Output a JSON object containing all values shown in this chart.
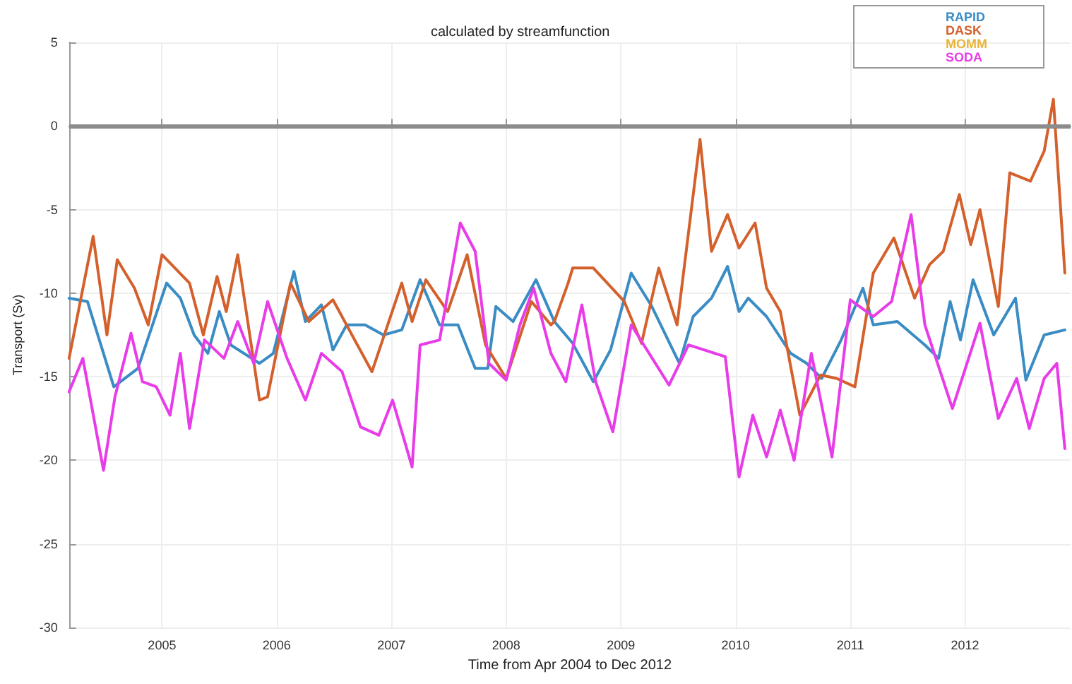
{
  "chart_data": {
    "type": "line",
    "title": "calculated by streamfunction",
    "xlabel": "Time from Apr 2004 to Dec 2012",
    "ylabel": "Transport (Sv)",
    "xlim": [
      2004.19,
      2012.92
    ],
    "xticks": [
      2005,
      2006,
      2007,
      2008,
      2009,
      2010,
      2011,
      2012
    ],
    "ylim": [
      -30,
      5
    ],
    "yticks": [
      -30,
      -25,
      -20,
      -15,
      -10,
      -5,
      0,
      5
    ],
    "grid": true,
    "legend": "top right",
    "marker": "none",
    "line_style": "solid",
    "ref_lines": [
      {
        "axis": "y",
        "value": 0,
        "color": "#8c8c8c"
      }
    ],
    "series": [
      {
        "name": "RAPID",
        "color": "#3a8cc4",
        "x": [
          2004.19,
          2004.35,
          2004.58,
          2004.79,
          2005.04,
          2005.16,
          2005.28,
          2005.4,
          2005.5,
          2005.6,
          2005.85,
          2005.97,
          2006.15,
          2006.25,
          2006.39,
          2006.49,
          2006.61,
          2006.77,
          2006.93,
          2007.09,
          2007.25,
          2007.42,
          2007.58,
          2007.73,
          2007.84,
          2007.91,
          2008.06,
          2008.26,
          2008.42,
          2008.58,
          2008.76,
          2008.91,
          2009.09,
          2009.27,
          2009.51,
          2009.63,
          2009.79,
          2009.93,
          2010.03,
          2010.11,
          2010.27,
          2010.48,
          2010.62,
          2010.75,
          2010.92,
          2011.11,
          2011.2,
          2011.41,
          2011.65,
          2011.77,
          2011.87,
          2011.96,
          2012.07,
          2012.25,
          2012.44,
          2012.53,
          2012.69,
          2012.87
        ],
        "values": [
          -10.3,
          -10.5,
          -15.6,
          -14.5,
          -9.4,
          -10.3,
          -12.5,
          -13.6,
          -11.1,
          -13.1,
          -14.2,
          -13.6,
          -8.7,
          -11.7,
          -10.7,
          -13.4,
          -11.9,
          -11.9,
          -12.5,
          -12.2,
          -9.2,
          -11.9,
          -11.9,
          -14.5,
          -14.5,
          -10.8,
          -11.7,
          -9.2,
          -11.7,
          -13.0,
          -15.3,
          -13.4,
          -8.8,
          -10.8,
          -14.2,
          -11.4,
          -10.3,
          -8.4,
          -11.1,
          -10.3,
          -11.4,
          -13.6,
          -14.2,
          -15.1,
          -12.8,
          -9.7,
          -11.9,
          -11.7,
          -13.1,
          -13.9,
          -10.5,
          -12.8,
          -9.2,
          -12.5,
          -10.3,
          -15.2,
          -12.5,
          -12.2
        ]
      },
      {
        "name": "DASK",
        "color": "#d4602c",
        "x": [
          2004.19,
          2004.4,
          2004.52,
          2004.61,
          2004.76,
          2004.88,
          2005.0,
          2005.24,
          2005.36,
          2005.48,
          2005.56,
          2005.66,
          2005.85,
          2005.92,
          2006.12,
          2006.28,
          2006.49,
          2006.83,
          2007.09,
          2007.18,
          2007.3,
          2007.49,
          2007.66,
          2007.82,
          2008.0,
          2008.22,
          2008.39,
          2008.42,
          2008.54,
          2008.58,
          2008.76,
          2009.03,
          2009.18,
          2009.33,
          2009.49,
          2009.69,
          2009.79,
          2009.93,
          2010.03,
          2010.17,
          2010.27,
          2010.39,
          2010.56,
          2010.74,
          2010.88,
          2011.04,
          2011.2,
          2011.38,
          2011.56,
          2011.69,
          2011.81,
          2011.95,
          2012.05,
          2012.13,
          2012.29,
          2012.39,
          2012.57,
          2012.69,
          2012.77,
          2012.87
        ],
        "values": [
          -13.9,
          -6.6,
          -12.5,
          -8.0,
          -9.7,
          -11.9,
          -7.7,
          -9.4,
          -12.5,
          -9.0,
          -11.1,
          -7.7,
          -16.4,
          -16.2,
          -9.4,
          -11.7,
          -10.4,
          -14.7,
          -9.4,
          -11.7,
          -9.2,
          -11.1,
          -7.7,
          -13.1,
          -15.1,
          -10.5,
          -11.9,
          -11.7,
          -9.4,
          -8.5,
          -8.5,
          -10.5,
          -13.0,
          -8.5,
          -11.9,
          -0.8,
          -7.5,
          -5.3,
          -7.3,
          -5.8,
          -9.7,
          -11.1,
          -17.3,
          -14.9,
          -15.1,
          -15.6,
          -8.8,
          -6.7,
          -10.3,
          -8.3,
          -7.5,
          -4.1,
          -7.1,
          -5.0,
          -10.8,
          -2.8,
          -3.3,
          -1.5,
          1.6,
          -8.8
        ]
      },
      {
        "name": "MOMM",
        "color": "#e8b53a"
      },
      {
        "name": "SODA",
        "color": "#e83ce8",
        "x": [
          2004.19,
          2004.31,
          2004.49,
          2004.59,
          2004.73,
          2004.83,
          2004.95,
          2005.07,
          2005.16,
          2005.24,
          2005.37,
          2005.54,
          2005.66,
          2005.8,
          2005.92,
          2006.09,
          2006.25,
          2006.39,
          2006.57,
          2006.73,
          2006.89,
          2007.01,
          2007.18,
          2007.25,
          2007.42,
          2007.6,
          2007.73,
          2007.85,
          2008.0,
          2008.12,
          2008.24,
          2008.39,
          2008.52,
          2008.66,
          2008.78,
          2008.93,
          2009.09,
          2009.42,
          2009.59,
          2009.91,
          2010.03,
          2010.15,
          2010.27,
          2010.39,
          2010.51,
          2010.66,
          2010.84,
          2011.0,
          2011.2,
          2011.36,
          2011.53,
          2011.65,
          2011.89,
          2012.13,
          2012.29,
          2012.45,
          2012.56,
          2012.69,
          2012.8,
          2012.87
        ],
        "values": [
          -15.9,
          -13.9,
          -20.6,
          -16.2,
          -12.4,
          -15.3,
          -15.6,
          -17.3,
          -13.6,
          -18.1,
          -12.8,
          -13.9,
          -11.7,
          -14.2,
          -10.5,
          -13.9,
          -16.4,
          -13.6,
          -14.7,
          -18.0,
          -18.5,
          -16.4,
          -20.4,
          -13.1,
          -12.8,
          -5.8,
          -7.5,
          -14.2,
          -15.2,
          -11.9,
          -9.7,
          -13.6,
          -15.3,
          -10.7,
          -15.3,
          -18.3,
          -11.9,
          -15.5,
          -13.1,
          -13.8,
          -21.0,
          -17.3,
          -19.8,
          -17.0,
          -20.0,
          -13.6,
          -19.8,
          -10.4,
          -11.4,
          -10.5,
          -5.3,
          -11.9,
          -16.9,
          -11.8,
          -17.5,
          -15.1,
          -18.1,
          -15.1,
          -14.2,
          -19.3
        ]
      }
    ]
  }
}
